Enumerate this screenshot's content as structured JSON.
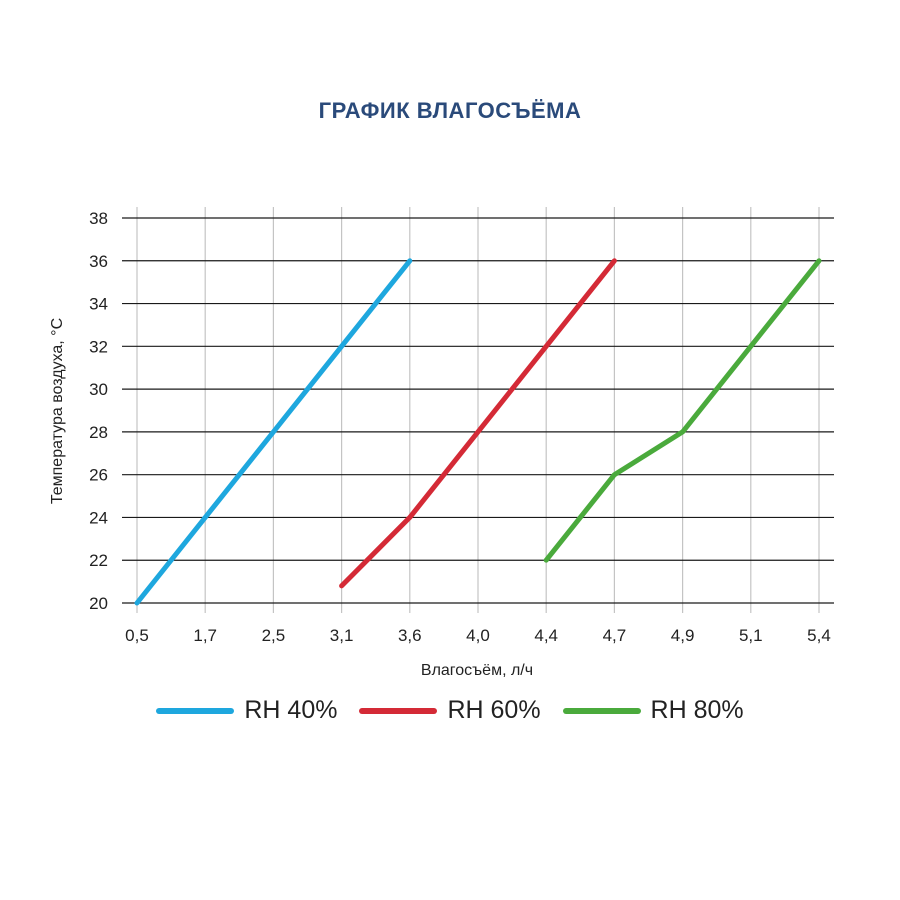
{
  "chart_data": {
    "type": "line",
    "title": "ГРАФИК ВЛАГОСЪЁМА",
    "xlabel": "Влагосъём, л/ч",
    "ylabel": "Температура воздуха, °C",
    "x_categories": [
      "0,5",
      "1,7",
      "2,5",
      "3,1",
      "3,6",
      "4,0",
      "4,4",
      "4,7",
      "4,9",
      "5,1",
      "5,4"
    ],
    "y_ticks": [
      "20",
      "22",
      "24",
      "26",
      "28",
      "30",
      "32",
      "34",
      "36",
      "38"
    ],
    "ylim": [
      20,
      38
    ],
    "grid": true,
    "legend_position": "bottom",
    "series": [
      {
        "name": "RH 40%",
        "color": "#1ea7de",
        "points": [
          [
            0.5,
            20
          ],
          [
            3.6,
            36
          ]
        ]
      },
      {
        "name": "RH 60%",
        "color": "#d42a36",
        "points": [
          [
            3.1,
            20.8
          ],
          [
            3.6,
            24
          ],
          [
            4.7,
            36
          ]
        ]
      },
      {
        "name": "RH 80%",
        "color": "#4aaa3c",
        "points": [
          [
            4.4,
            22
          ],
          [
            4.7,
            26
          ],
          [
            4.9,
            28
          ],
          [
            5.4,
            36
          ]
        ]
      }
    ]
  }
}
